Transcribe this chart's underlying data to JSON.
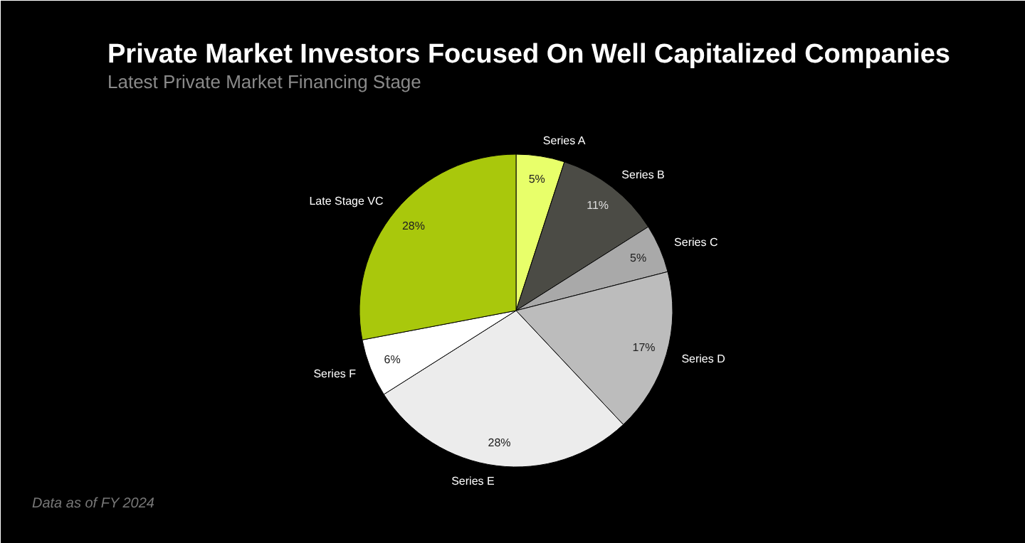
{
  "chart_data": {
    "type": "pie",
    "title": "Private Market Investors Focused On Well Capitalized Companies",
    "subtitle": "Latest Private Market Financing Stage",
    "categories": [
      "Series A",
      "Series B",
      "Series C",
      "Series D",
      "Series E",
      "Series F",
      "Late Stage VC"
    ],
    "values": [
      5,
      11,
      5,
      17,
      28,
      6,
      28
    ],
    "colors": [
      "#e8ff6a",
      "#4b4b45",
      "#a9a9a9",
      "#bcbcbc",
      "#ececec",
      "#ffffff",
      "#a9c80c"
    ],
    "value_labels": [
      "5%",
      "11%",
      "5%",
      "17%",
      "28%",
      "6%",
      "28%"
    ],
    "annotations": [
      "Data as of FY 2024"
    ]
  }
}
